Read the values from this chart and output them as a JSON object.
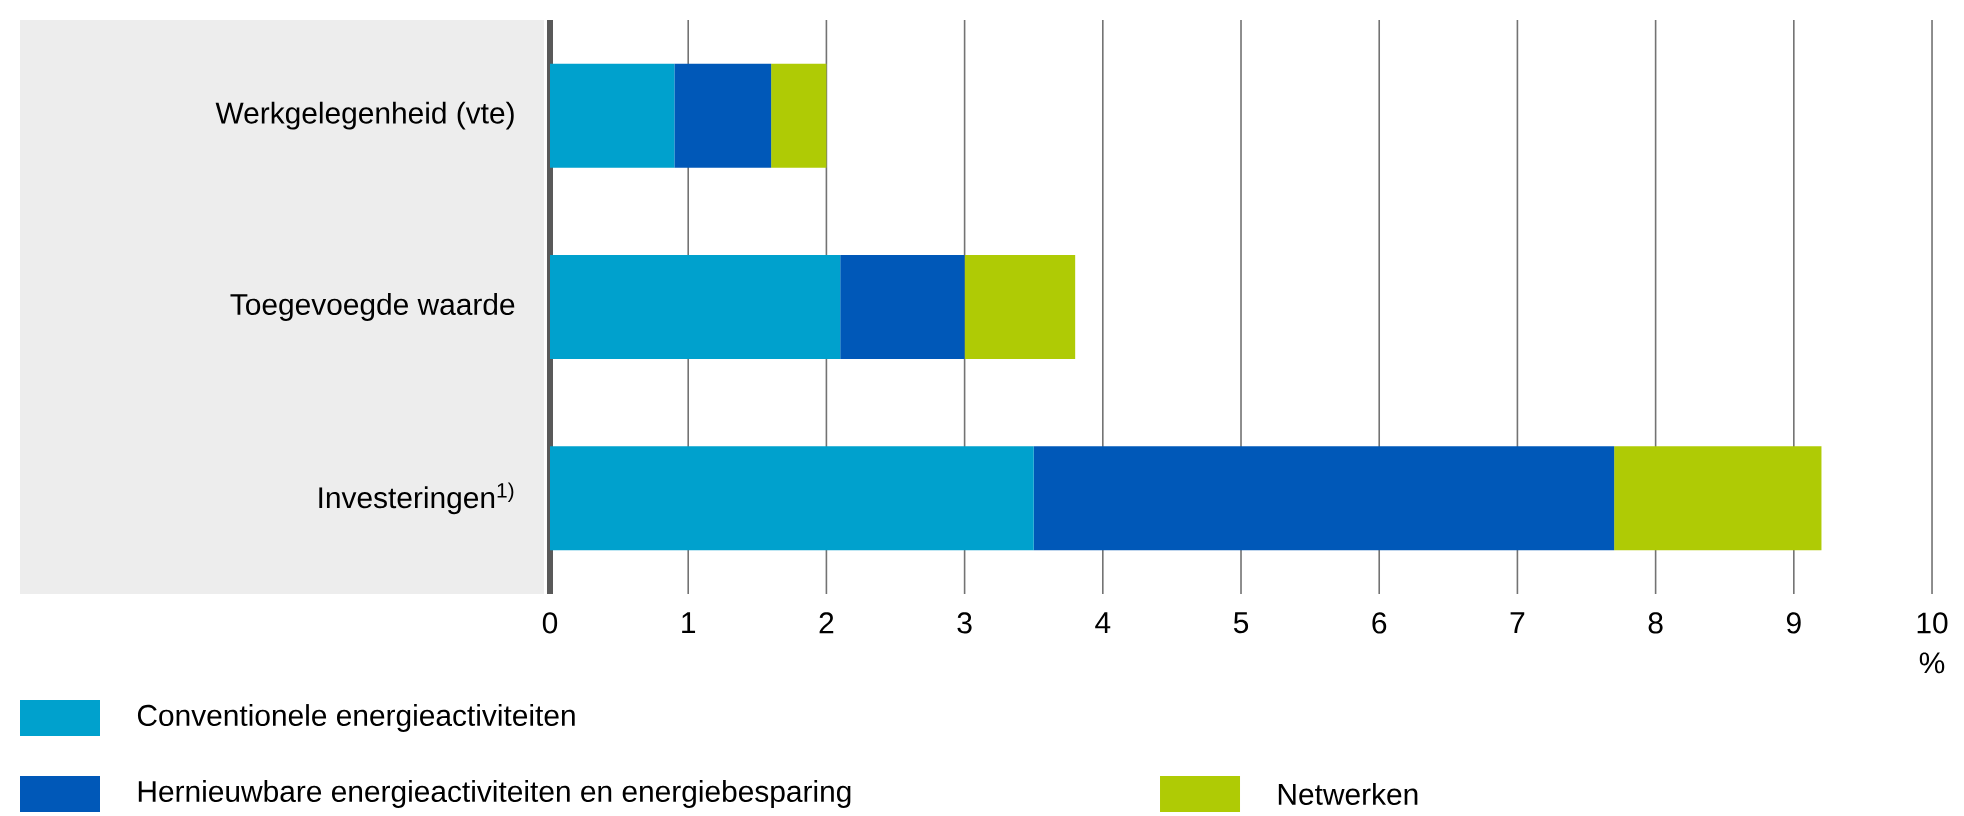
{
  "chart_data": {
    "type": "bar",
    "orientation": "horizontal",
    "stacked": true,
    "categories": [
      "Werkgelegenheid (vte)",
      "Toegevoegde waarde",
      "Investeringen$^{1)}$"
    ],
    "series": [
      {
        "name": "Conventionele energieactiviteiten",
        "color": "#00a1cd",
        "values": [
          0.9,
          2.1,
          3.5
        ]
      },
      {
        "name": "Hernieuwbare energieactiviteiten en energiebesparing",
        "color": "#0058b8",
        "values": [
          0.7,
          0.9,
          4.2
        ]
      },
      {
        "name": "Netwerken",
        "color": "#afcb05",
        "values": [
          0.4,
          0.8,
          1.5
        ]
      }
    ],
    "xlabel": "%",
    "xlim": [
      0,
      10
    ],
    "xticks": [
      0,
      1,
      2,
      3,
      4,
      5,
      6,
      7,
      8,
      9,
      10
    ],
    "grid": "x",
    "legend": "bottom"
  }
}
